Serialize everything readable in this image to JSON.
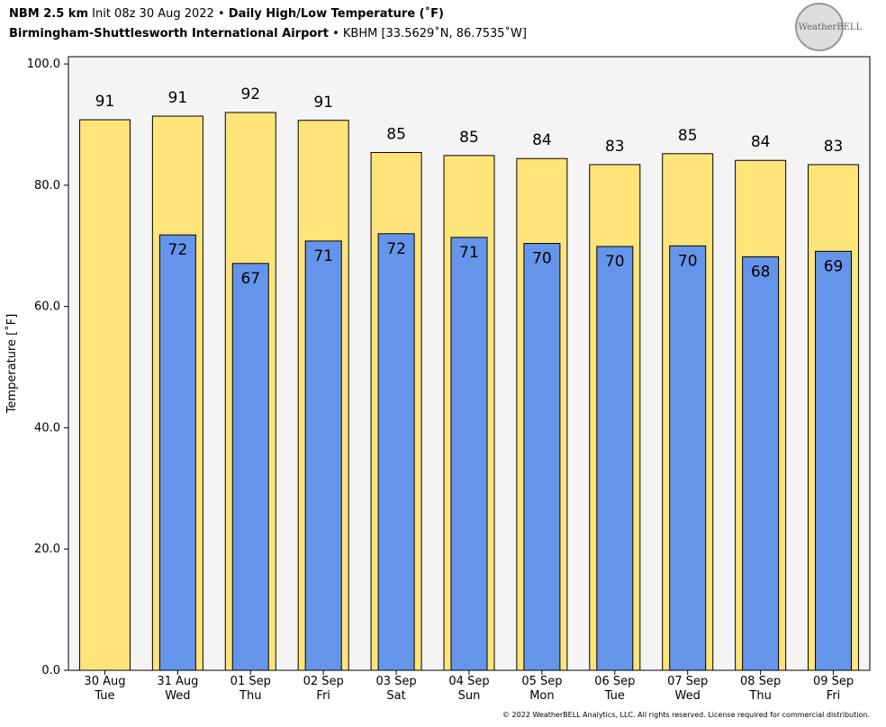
{
  "chart_data": {
    "type": "bar",
    "title_parts": [
      "NBM 2.5 km",
      "Init 08z 30 Aug 2022 •",
      "Daily High/Low Temperature (˚F)"
    ],
    "subtitle_parts": [
      "Birmingham-Shuttlesworth International Airport",
      "• KBHM [33.5629˚N, 86.7535˚W]"
    ],
    "logo": "WeatherBELL",
    "footer": "© 2022 WeatherBELL Analytics, LLC. All rights reserved. License required for commercial distribution.",
    "y_label": "Temperature [˚F]",
    "categories": [
      "30 Aug",
      "31 Aug",
      "01 Sep",
      "02 Sep",
      "03 Sep",
      "04 Sep",
      "05 Sep",
      "06 Sep",
      "07 Sep",
      "08 Sep",
      "09 Sep"
    ],
    "weekdays": [
      "Tue",
      "Wed",
      "Thu",
      "Fri",
      "Sat",
      "Sun",
      "Mon",
      "Tue",
      "Wed",
      "Thu",
      "Fri"
    ],
    "series": [
      {
        "name": "High",
        "color": "#ffe47a",
        "values": [
          90.8,
          91.4,
          92.0,
          90.7,
          85.4,
          84.9,
          84.4,
          83.4,
          85.2,
          84.1,
          83.4
        ],
        "value_labels": [
          "91",
          "91",
          "92",
          "91",
          "85",
          "85",
          "84",
          "83",
          "85",
          "84",
          "83"
        ]
      },
      {
        "name": "Low",
        "color": "#6495ea",
        "values": [
          null,
          71.8,
          67.1,
          70.8,
          72.0,
          71.4,
          70.4,
          69.9,
          70.0,
          68.2,
          69.1
        ],
        "value_labels": [
          null,
          "72",
          "67",
          "71",
          "72",
          "71",
          "70",
          "70",
          "70",
          "68",
          "69"
        ]
      }
    ],
    "ylim": [
      0,
      101.2
    ],
    "yticks": [
      {
        "value": 0,
        "label": "0.0"
      },
      {
        "value": 20,
        "label": "20.0"
      },
      {
        "value": 40,
        "label": "40.0"
      },
      {
        "value": 60,
        "label": "60.0"
      },
      {
        "value": 80,
        "label": "80.0"
      },
      {
        "value": 100,
        "label": "100.0"
      }
    ]
  }
}
